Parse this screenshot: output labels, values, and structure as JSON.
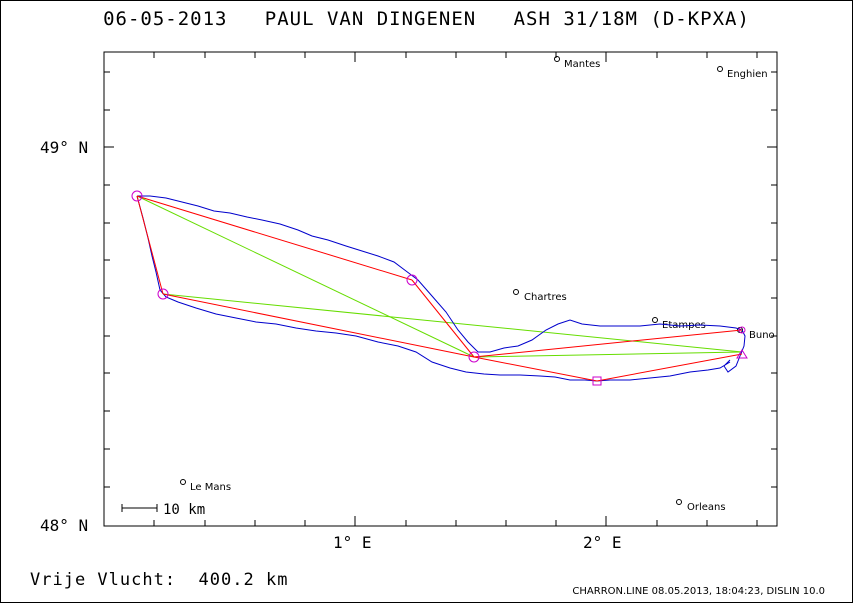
{
  "header": {
    "date": "06-05-2013",
    "pilot": "PAUL VAN DINGENEN",
    "glider": "ASH 31/18M (D-KPXA)"
  },
  "footer": {
    "distance_label": "Vrije Vlucht:",
    "distance_value": "400.2 km",
    "credits": "CHARRON.LINE 08.05.2013, 18:04:23, DISLIN 10.0"
  },
  "map": {
    "scale_bar_label": "10 km",
    "lat_labels": [
      "49° N",
      "48° N"
    ],
    "lon_labels": [
      "1° E",
      "2° E"
    ],
    "towns": [
      {
        "name": "Mantes"
      },
      {
        "name": "Enghien"
      },
      {
        "name": "Chartres"
      },
      {
        "name": "Etampes"
      },
      {
        "name": "Buno"
      },
      {
        "name": "Le Mans"
      },
      {
        "name": "Orleans"
      }
    ],
    "colors": {
      "track": "#0000cc",
      "task_leg": "#ff0000",
      "alt_leg": "#66dd00",
      "turnpoint": "#cc00cc"
    }
  }
}
